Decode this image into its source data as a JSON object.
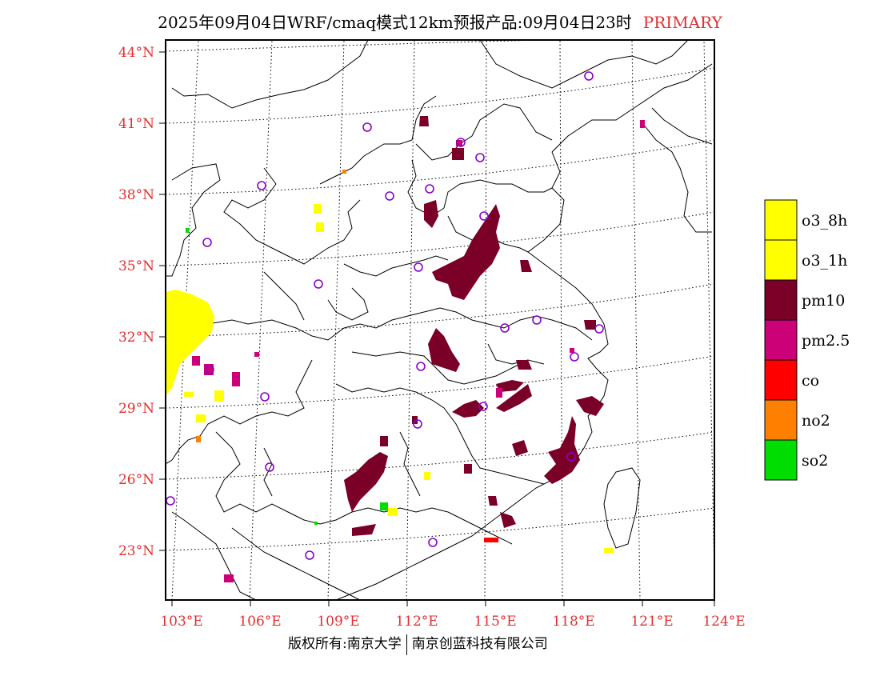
{
  "title": {
    "main": "2025年09月04日WRF/cmaq模式12km预报产品:09月04日23时",
    "tag": "PRIMARY"
  },
  "map": {
    "lat_labels": [
      "44°N",
      "41°N",
      "38°N",
      "35°N",
      "32°N",
      "29°N",
      "26°N",
      "23°N"
    ],
    "lon_labels": [
      "103°E",
      "106°E",
      "109°E",
      "112°E",
      "115°E",
      "118°E",
      "121°E",
      "124°E"
    ]
  },
  "legend": {
    "items": [
      {
        "label": "o3_8h",
        "color": "#ffff00"
      },
      {
        "label": "o3_1h",
        "color": "#ffff00"
      },
      {
        "label": "pm10",
        "color": "#7a0028"
      },
      {
        "label": "pm2.5",
        "color": "#cc0077"
      },
      {
        "label": "co",
        "color": "#ff0000"
      },
      {
        "label": "no2",
        "color": "#ff7f00"
      },
      {
        "label": "so2",
        "color": "#00dd00"
      }
    ]
  },
  "stations_icon": "circle-station-marker",
  "footer": {
    "left": "版权所有:南京大学",
    "right": "南京创蓝科技有限公司"
  }
}
